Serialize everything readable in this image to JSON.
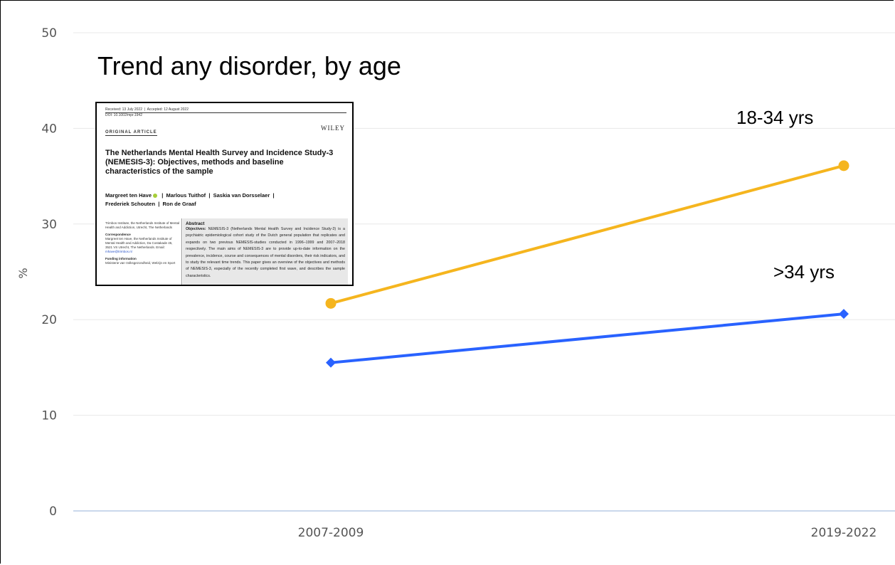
{
  "chart_data": {
    "type": "line",
    "title": "Trend any disorder, by age",
    "ylabel": "%",
    "xlabel": "",
    "categories": [
      "2007-2009",
      "2019-2022"
    ],
    "ylim": [
      0,
      50
    ],
    "yticks": [
      0,
      10,
      20,
      30,
      40,
      50
    ],
    "grid": true,
    "series": [
      {
        "name": "18-34 yrs",
        "values": [
          21.7,
          36.1
        ],
        "color": "#f5b51e",
        "marker": "circle"
      },
      {
        "name": ">34 yrs",
        "values": [
          15.5,
          20.6
        ],
        "color": "#2962ff",
        "marker": "diamond"
      }
    ]
  },
  "paper": {
    "received": "Received: 13 July 2022",
    "accepted": "Accepted: 12 August 2022",
    "doi": "DOI: 10.1002/mpr.1942",
    "kicker": "ORIGINAL ARTICLE",
    "publisher": "WILEY",
    "title": "The Netherlands Mental Health Survey and Incidence Study-3 (NEMESIS-3): Objectives, methods and baseline characteristics of the sample",
    "authors_line1_a": "Margreet ten Have",
    "authors_line1_b": "Marlous Tuithof",
    "authors_line1_c": "Saskia van Dorsselaer",
    "authors_line2_a": "Frederiek Schouten",
    "authors_line2_b": "Ron de Graaf",
    "sep": "|",
    "affiliation": "Trimbos Institute, the Netherlands Institute of Mental Health and Addiction, Utrecht, The Netherlands",
    "corr_head": "Correspondence",
    "corr_text": "Margreet ten Have, the Netherlands Institute of Mental Health and Addiction, Da Costakade 45, 3521 VS Utrecht, The Netherlands.",
    "email_label": "Email:",
    "email": "mhave@trimbos.nl",
    "funding_head": "Funding information",
    "funding_text": "Ministerie van Volksgezondheid, Welzijn en Sport",
    "abstract_head": "Abstract",
    "abstract_lead": "Objectives:",
    "abstract_text": "NEMESIS-3 (Netherlands Mental Health Survey and Incidence Study-3) is a psychiatric epidemiological cohort study of the Dutch general population that replicates and expands on two previous NEMESIS-studies conducted in 1996–1999 and 2007–2018 respectively. The main aims of NEMESIS-3 are to provide up-to-date information on the prevalence, incidence, course and consequences of mental disorders, their risk indicators, and to study the relevant time trends. This paper gives an overview of the objectives and methods of NEMESIS-3, especially of the recently completed first wave, and describes the sample characteristics."
  }
}
